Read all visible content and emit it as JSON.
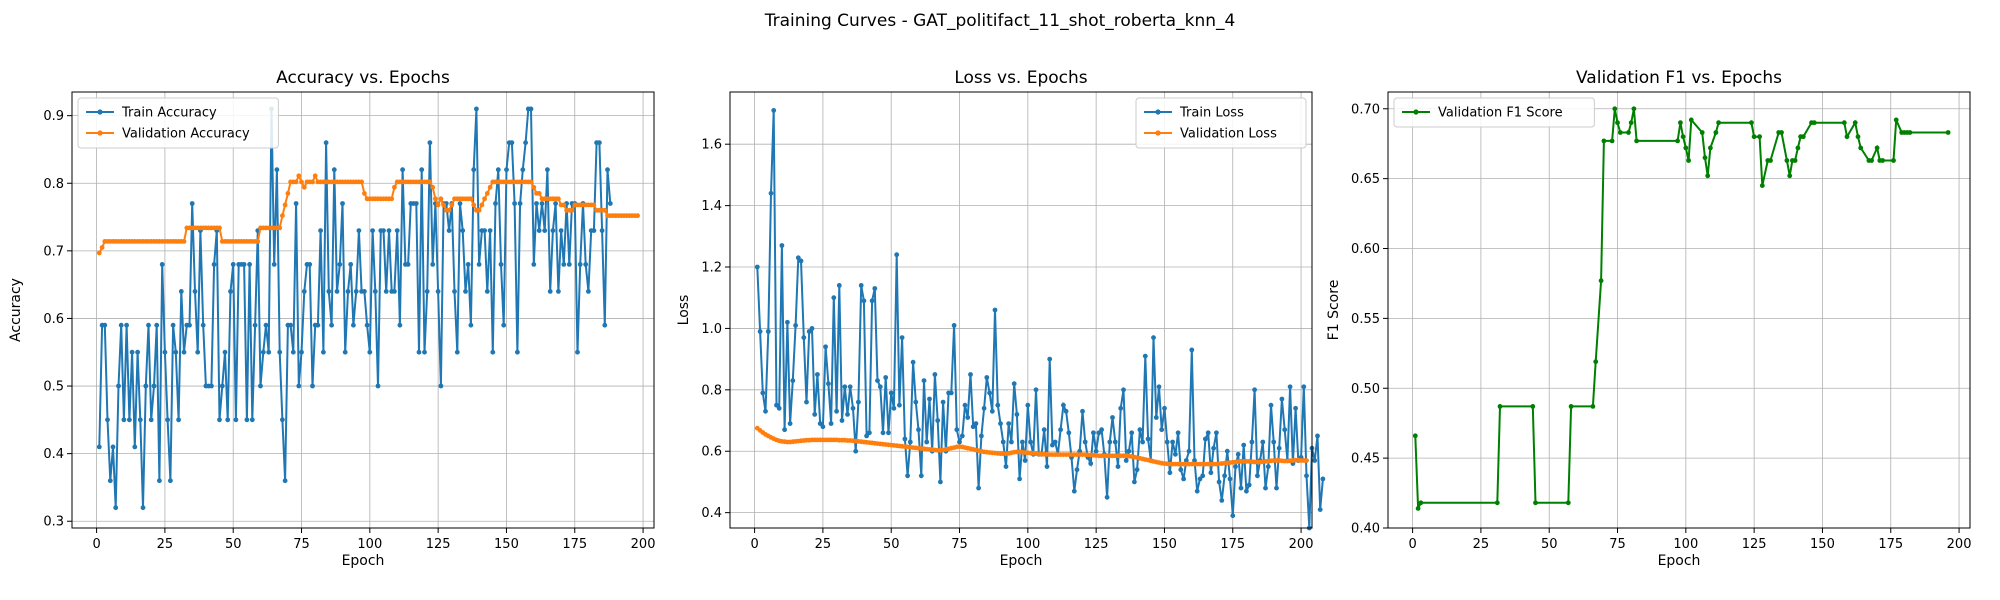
{
  "figure": {
    "title": "Training Curves - GAT_politifact_11_shot_roberta_knn_4"
  },
  "colors": {
    "train": "#1f77b4",
    "validation": "#ff7f0e",
    "f1": "#008000",
    "grid": "#b0b0b0"
  },
  "chart_data": [
    {
      "type": "line",
      "title": "Accuracy vs. Epochs",
      "xlabel": "Epoch",
      "ylabel": "Accuracy",
      "xlim": [
        -9,
        204
      ],
      "ylim": [
        0.29,
        0.935
      ],
      "xticks": [
        0,
        25,
        50,
        75,
        100,
        125,
        150,
        175,
        200
      ],
      "yticks": [
        0.3,
        0.4,
        0.5,
        0.6,
        0.7,
        0.8,
        0.9
      ],
      "grid": true,
      "legend_position": "top-left",
      "series": [
        {
          "name": "Train Accuracy",
          "color": "#1f77b4",
          "x_start": 1,
          "values": [
            0.41,
            0.59,
            0.59,
            0.45,
            0.36,
            0.41,
            0.32,
            0.5,
            0.59,
            0.45,
            0.59,
            0.45,
            0.55,
            0.41,
            0.55,
            0.45,
            0.32,
            0.5,
            0.59,
            0.45,
            0.5,
            0.59,
            0.36,
            0.68,
            0.55,
            0.45,
            0.36,
            0.59,
            0.55,
            0.45,
            0.64,
            0.55,
            0.59,
            0.59,
            0.77,
            0.64,
            0.55,
            0.73,
            0.59,
            0.5,
            0.5,
            0.5,
            0.68,
            0.73,
            0.45,
            0.5,
            0.55,
            0.45,
            0.64,
            0.68,
            0.45,
            0.68,
            0.68,
            0.68,
            0.45,
            0.68,
            0.45,
            0.59,
            0.73,
            0.5,
            0.55,
            0.59,
            0.55,
            0.91,
            0.68,
            0.82,
            0.55,
            0.45,
            0.36,
            0.59,
            0.59,
            0.55,
            0.77,
            0.5,
            0.55,
            0.64,
            0.68,
            0.68,
            0.5,
            0.59,
            0.59,
            0.73,
            0.55,
            0.86,
            0.64,
            0.59,
            0.82,
            0.64,
            0.68,
            0.77,
            0.55,
            0.64,
            0.68,
            0.59,
            0.64,
            0.73,
            0.64,
            0.64,
            0.59,
            0.55,
            0.73,
            0.64,
            0.5,
            0.73,
            0.73,
            0.64,
            0.73,
            0.64,
            0.64,
            0.73,
            0.59,
            0.82,
            0.68,
            0.68,
            0.77,
            0.77,
            0.77,
            0.55,
            0.82,
            0.55,
            0.64,
            0.86,
            0.68,
            0.77,
            0.64,
            0.5,
            0.77,
            0.77,
            0.73,
            0.77,
            0.64,
            0.55,
            0.77,
            0.73,
            0.64,
            0.68,
            0.59,
            0.82,
            0.91,
            0.68,
            0.73,
            0.73,
            0.64,
            0.73,
            0.55,
            0.77,
            0.82,
            0.68,
            0.59,
            0.82,
            0.86,
            0.86,
            0.77,
            0.55,
            0.77,
            0.82,
            0.86,
            0.91,
            0.91,
            0.68,
            0.77,
            0.73,
            0.77,
            0.73,
            0.82,
            0.64,
            0.73,
            0.77,
            0.64,
            0.73,
            0.68,
            0.77,
            0.68,
            0.77,
            0.77,
            0.55,
            0.68,
            0.77,
            0.68,
            0.64,
            0.73,
            0.73,
            0.86,
            0.86,
            0.73,
            0.59,
            0.82,
            0.77
          ]
        },
        {
          "name": "Validation Accuracy",
          "color": "#ff7f0e",
          "x_start": 1,
          "values": [
            0.697,
            0.705,
            0.714,
            0.714,
            0.714,
            0.714,
            0.714,
            0.714,
            0.714,
            0.714,
            0.714,
            0.714,
            0.714,
            0.714,
            0.714,
            0.714,
            0.714,
            0.714,
            0.714,
            0.714,
            0.714,
            0.714,
            0.714,
            0.714,
            0.714,
            0.714,
            0.714,
            0.714,
            0.714,
            0.714,
            0.714,
            0.714,
            0.734,
            0.734,
            0.734,
            0.734,
            0.734,
            0.734,
            0.734,
            0.734,
            0.734,
            0.734,
            0.734,
            0.734,
            0.734,
            0.714,
            0.714,
            0.714,
            0.714,
            0.714,
            0.714,
            0.714,
            0.714,
            0.714,
            0.714,
            0.714,
            0.714,
            0.714,
            0.714,
            0.734,
            0.734,
            0.734,
            0.734,
            0.734,
            0.734,
            0.734,
            0.734,
            0.752,
            0.768,
            0.785,
            0.802,
            0.802,
            0.802,
            0.811,
            0.802,
            0.794,
            0.802,
            0.802,
            0.802,
            0.811,
            0.802,
            0.802,
            0.802,
            0.802,
            0.802,
            0.802,
            0.802,
            0.802,
            0.802,
            0.802,
            0.802,
            0.802,
            0.802,
            0.802,
            0.802,
            0.802,
            0.802,
            0.785,
            0.777,
            0.777,
            0.777,
            0.777,
            0.777,
            0.777,
            0.777,
            0.777,
            0.777,
            0.777,
            0.794,
            0.802,
            0.802,
            0.802,
            0.802,
            0.802,
            0.802,
            0.802,
            0.802,
            0.802,
            0.802,
            0.802,
            0.802,
            0.802,
            0.794,
            0.777,
            0.768,
            0.777,
            0.768,
            0.76,
            0.76,
            0.768,
            0.777,
            0.777,
            0.777,
            0.777,
            0.777,
            0.777,
            0.777,
            0.768,
            0.76,
            0.76,
            0.768,
            0.777,
            0.785,
            0.794,
            0.802,
            0.802,
            0.802,
            0.802,
            0.802,
            0.802,
            0.802,
            0.802,
            0.802,
            0.802,
            0.802,
            0.802,
            0.802,
            0.802,
            0.802,
            0.794,
            0.785,
            0.785,
            0.777,
            0.777,
            0.777,
            0.777,
            0.777,
            0.777,
            0.777,
            0.768,
            0.768,
            0.76,
            0.76,
            0.76,
            0.768,
            0.768,
            0.768,
            0.768,
            0.768,
            0.768,
            0.768,
            0.768,
            0.76,
            0.76,
            0.76,
            0.76,
            0.752,
            0.752,
            0.752,
            0.752,
            0.752,
            0.752,
            0.752,
            0.752,
            0.752,
            0.752,
            0.752,
            0.752
          ]
        }
      ]
    },
    {
      "type": "line",
      "title": "Loss vs. Epochs",
      "xlabel": "Epoch",
      "ylabel": "Loss",
      "xlim": [
        -9,
        204
      ],
      "ylim": [
        0.35,
        1.77
      ],
      "xticks": [
        0,
        25,
        50,
        75,
        100,
        125,
        150,
        175,
        200
      ],
      "yticks": [
        0.4,
        0.6,
        0.8,
        1.0,
        1.2,
        1.4,
        1.6
      ],
      "grid": true,
      "legend_position": "top-right",
      "series": [
        {
          "name": "Train Loss",
          "color": "#1f77b4",
          "x_start": 1,
          "values": [
            1.2,
            0.99,
            0.79,
            0.73,
            0.99,
            1.44,
            1.71,
            0.75,
            0.74,
            1.27,
            0.67,
            1.02,
            0.69,
            0.83,
            1.01,
            1.23,
            1.22,
            0.97,
            0.76,
            0.99,
            1.0,
            0.72,
            0.85,
            0.69,
            0.68,
            0.94,
            0.82,
            0.69,
            1.1,
            0.73,
            1.14,
            0.7,
            0.81,
            0.72,
            0.81,
            0.74,
            0.6,
            0.76,
            1.14,
            1.09,
            0.65,
            0.66,
            1.09,
            1.13,
            0.83,
            0.81,
            0.66,
            0.84,
            0.66,
            0.79,
            0.74,
            1.24,
            0.75,
            0.97,
            0.64,
            0.52,
            0.63,
            0.89,
            0.76,
            0.67,
            0.52,
            0.83,
            0.63,
            0.77,
            0.6,
            0.85,
            0.7,
            0.5,
            0.76,
            0.6,
            0.79,
            0.79,
            1.01,
            0.67,
            0.63,
            0.65,
            0.75,
            0.71,
            0.85,
            0.68,
            0.69,
            0.48,
            0.65,
            0.74,
            0.84,
            0.79,
            0.73,
            1.06,
            0.75,
            0.69,
            0.63,
            0.55,
            0.69,
            0.63,
            0.82,
            0.72,
            0.51,
            0.63,
            0.57,
            0.75,
            0.63,
            0.59,
            0.8,
            0.59,
            0.59,
            0.67,
            0.55,
            0.9,
            0.62,
            0.63,
            0.59,
            0.67,
            0.75,
            0.73,
            0.66,
            0.58,
            0.47,
            0.54,
            0.6,
            0.73,
            0.63,
            0.58,
            0.56,
            0.66,
            0.6,
            0.66,
            0.67,
            0.59,
            0.45,
            0.63,
            0.71,
            0.63,
            0.55,
            0.74,
            0.8,
            0.57,
            0.6,
            0.66,
            0.5,
            0.54,
            0.67,
            0.63,
            0.91,
            0.64,
            0.57,
            0.97,
            0.71,
            0.81,
            0.67,
            0.74,
            0.63,
            0.53,
            0.63,
            0.59,
            0.66,
            0.54,
            0.51,
            0.57,
            0.6,
            0.93,
            0.57,
            0.47,
            0.51,
            0.52,
            0.64,
            0.66,
            0.53,
            0.61,
            0.66,
            0.5,
            0.44,
            0.52,
            0.6,
            0.51,
            0.39,
            0.55,
            0.59,
            0.48,
            0.62,
            0.47,
            0.49,
            0.63,
            0.8,
            0.52,
            0.57,
            0.63,
            0.48,
            0.55,
            0.75,
            0.63,
            0.48,
            0.61,
            0.77,
            0.67,
            0.57,
            0.81,
            0.56,
            0.74,
            0.57,
            0.58,
            0.81,
            0.52,
            0.35,
            0.61,
            0.57,
            0.65,
            0.41,
            0.51
          ]
        },
        {
          "name": "Validation Loss",
          "color": "#ff7f0e",
          "x_start": 1,
          "values": [
            0.675,
            0.668,
            0.661,
            0.655,
            0.65,
            0.645,
            0.641,
            0.637,
            0.634,
            0.632,
            0.631,
            0.63,
            0.63,
            0.631,
            0.632,
            0.633,
            0.634,
            0.635,
            0.636,
            0.636,
            0.637,
            0.637,
            0.637,
            0.637,
            0.637,
            0.637,
            0.637,
            0.637,
            0.637,
            0.637,
            0.636,
            0.636,
            0.636,
            0.635,
            0.635,
            0.634,
            0.633,
            0.632,
            0.631,
            0.63,
            0.629,
            0.628,
            0.627,
            0.626,
            0.625,
            0.624,
            0.623,
            0.622,
            0.621,
            0.62,
            0.619,
            0.618,
            0.617,
            0.616,
            0.615,
            0.614,
            0.613,
            0.612,
            0.611,
            0.61,
            0.609,
            0.608,
            0.607,
            0.606,
            0.605,
            0.604,
            0.603,
            0.603,
            0.604,
            0.606,
            0.608,
            0.61,
            0.612,
            0.614,
            0.615,
            0.614,
            0.612,
            0.61,
            0.608,
            0.606,
            0.604,
            0.602,
            0.6,
            0.598,
            0.597,
            0.596,
            0.595,
            0.594,
            0.593,
            0.592,
            0.592,
            0.592,
            0.593,
            0.595,
            0.597,
            0.598,
            0.598,
            0.597,
            0.596,
            0.595,
            0.594,
            0.593,
            0.592,
            0.591,
            0.59,
            0.59,
            0.59,
            0.589,
            0.589,
            0.589,
            0.589,
            0.589,
            0.589,
            0.589,
            0.589,
            0.589,
            0.589,
            0.589,
            0.589,
            0.589,
            0.589,
            0.588,
            0.588,
            0.587,
            0.586,
            0.585,
            0.585,
            0.585,
            0.585,
            0.585,
            0.585,
            0.585,
            0.585,
            0.585,
            0.585,
            0.585,
            0.584,
            0.583,
            0.581,
            0.579,
            0.577,
            0.575,
            0.573,
            0.571,
            0.569,
            0.567,
            0.565,
            0.563,
            0.561,
            0.56,
            0.559,
            0.558,
            0.558,
            0.558,
            0.558,
            0.558,
            0.558,
            0.558,
            0.558,
            0.558,
            0.558,
            0.558,
            0.558,
            0.558,
            0.558,
            0.558,
            0.558,
            0.558,
            0.558,
            0.559,
            0.56,
            0.561,
            0.562,
            0.563,
            0.564,
            0.565,
            0.566,
            0.567,
            0.567,
            0.567,
            0.567,
            0.566,
            0.565,
            0.565,
            0.565,
            0.566,
            0.567,
            0.568,
            0.569,
            0.57,
            0.57,
            0.57,
            0.569,
            0.568,
            0.568,
            0.569,
            0.57,
            0.571,
            0.571,
            0.57,
            0.57,
            0.57
          ]
        }
      ]
    },
    {
      "type": "line",
      "title": "Validation F1 vs. Epochs",
      "xlabel": "Epoch",
      "ylabel": "F1 Score",
      "xlim": [
        -9,
        204
      ],
      "ylim": [
        0.4,
        0.712
      ],
      "xticks": [
        0,
        25,
        50,
        75,
        100,
        125,
        150,
        175,
        200
      ],
      "yticks": [
        0.4,
        0.45,
        0.5,
        0.55,
        0.6,
        0.65,
        0.7
      ],
      "grid": true,
      "legend_position": "top-left",
      "series": [
        {
          "name": "Validation F1 Score",
          "color": "#008000",
          "x": [
            1,
            2,
            3,
            31,
            32,
            44,
            45,
            57,
            58,
            66,
            67,
            69,
            70,
            73,
            74,
            75,
            76,
            79,
            80,
            81,
            82,
            97,
            98,
            99,
            100,
            101,
            102,
            106,
            107,
            108,
            109,
            111,
            112,
            124,
            125,
            127,
            128,
            130,
            131,
            134,
            135,
            137,
            138,
            139,
            140,
            141,
            142,
            143,
            146,
            147,
            158,
            159,
            162,
            163,
            164,
            167,
            168,
            170,
            171,
            172,
            176,
            177,
            179,
            180,
            181,
            182,
            196
          ],
          "values": [
            0.466,
            0.414,
            0.418,
            0.418,
            0.487,
            0.487,
            0.418,
            0.418,
            0.487,
            0.487,
            0.519,
            0.577,
            0.677,
            0.677,
            0.7,
            0.69,
            0.683,
            0.683,
            0.69,
            0.7,
            0.677,
            0.677,
            0.69,
            0.68,
            0.672,
            0.663,
            0.692,
            0.683,
            0.665,
            0.652,
            0.672,
            0.683,
            0.69,
            0.69,
            0.68,
            0.68,
            0.645,
            0.663,
            0.663,
            0.683,
            0.683,
            0.663,
            0.652,
            0.663,
            0.663,
            0.672,
            0.68,
            0.68,
            0.69,
            0.69,
            0.69,
            0.68,
            0.69,
            0.68,
            0.672,
            0.663,
            0.663,
            0.672,
            0.663,
            0.663,
            0.663,
            0.692,
            0.683,
            0.683,
            0.683,
            0.683,
            0.683
          ]
        }
      ]
    }
  ]
}
